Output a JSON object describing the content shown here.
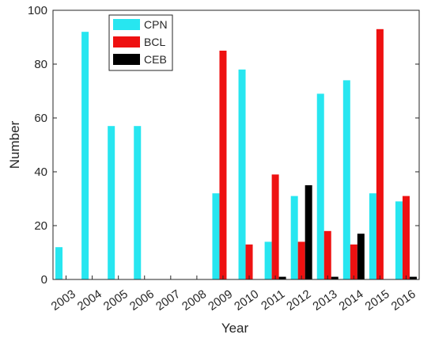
{
  "chart_data": {
    "type": "bar",
    "xlabel": "Year",
    "ylabel": "Number",
    "ylim": [
      0,
      100
    ],
    "yticks": [
      0,
      20,
      40,
      60,
      80,
      100
    ],
    "grid": false,
    "legend_position": "top-center",
    "categories": [
      "2003",
      "2004",
      "2005",
      "2006",
      "2007",
      "2008",
      "2009",
      "2010",
      "2011",
      "2012",
      "2013",
      "2014",
      "2015",
      "2016"
    ],
    "series": [
      {
        "name": "CPN",
        "color": "#27e6f0",
        "values": [
          12,
          92,
          57,
          57,
          0,
          0,
          32,
          78,
          14,
          31,
          69,
          74,
          32,
          29
        ]
      },
      {
        "name": "BCL",
        "color": "#ee1111",
        "values": [
          0,
          0,
          0,
          0,
          0,
          0,
          85,
          13,
          39,
          14,
          18,
          13,
          93,
          31
        ]
      },
      {
        "name": "CEB",
        "color": "#000000",
        "values": [
          0,
          0,
          0,
          0,
          0,
          0,
          0,
          0,
          1,
          35,
          1,
          17,
          0,
          1
        ]
      }
    ]
  }
}
